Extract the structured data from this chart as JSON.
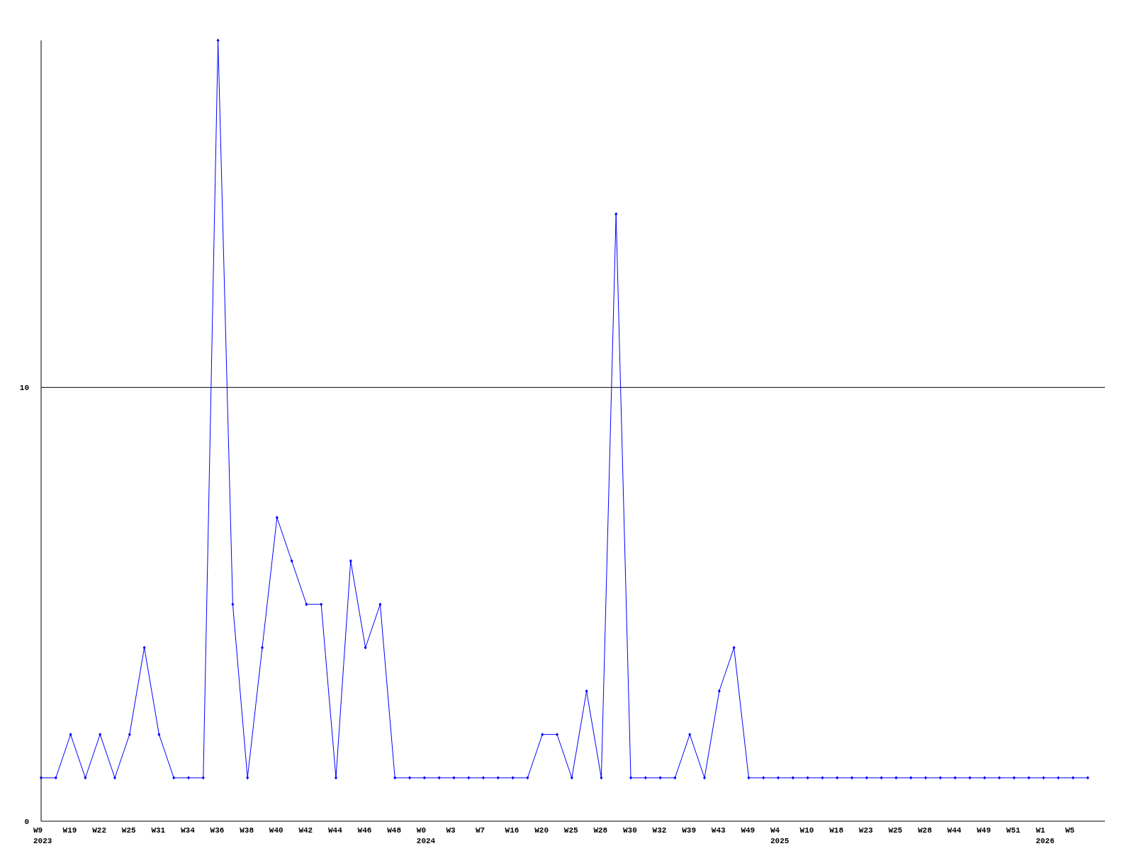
{
  "chart_data": {
    "type": "line",
    "categories": [
      "W9\n2023",
      null,
      "W19",
      null,
      "W22",
      null,
      "W25",
      null,
      "W31",
      null,
      "W34",
      null,
      "W36",
      null,
      "W38",
      null,
      "W40",
      null,
      "W42",
      null,
      "W44",
      null,
      "W46",
      null,
      "W48",
      null,
      "W0\n2024",
      null,
      "W3",
      null,
      "W7",
      null,
      "W16",
      null,
      "W20",
      null,
      "W25",
      null,
      "W28",
      null,
      "W30",
      null,
      "W32",
      null,
      "W39",
      null,
      "W43",
      null,
      "W49",
      null,
      "W4\n2025",
      null,
      "W10",
      null,
      "W18",
      null,
      "W23",
      null,
      "W25",
      null,
      "W28",
      null,
      "W44",
      null,
      "W49",
      null,
      "W51",
      null,
      "W1\n2026",
      null,
      "W5",
      null
    ],
    "series": [
      {
        "color": "#0000ff",
        "values": [
          1,
          1,
          2,
          1,
          2,
          1,
          2,
          4,
          2,
          1,
          1,
          1,
          18,
          5,
          1,
          4,
          7,
          6,
          5,
          5,
          1,
          6,
          4,
          5,
          1,
          1,
          1,
          1,
          1,
          1,
          1,
          1,
          1,
          1,
          2,
          2,
          1,
          3,
          1,
          14,
          1,
          1,
          1,
          1,
          2,
          1,
          3,
          4,
          1,
          1,
          1,
          1,
          1,
          1,
          1,
          1,
          1,
          1,
          1,
          1,
          1,
          1,
          1,
          1,
          1,
          1,
          1,
          1,
          1,
          1,
          1,
          1
        ]
      }
    ],
    "ylim": [
      0,
      18
    ],
    "yticks": [
      0,
      10
    ],
    "grid": "y",
    "marker": "diamond",
    "line_style": "solid"
  }
}
